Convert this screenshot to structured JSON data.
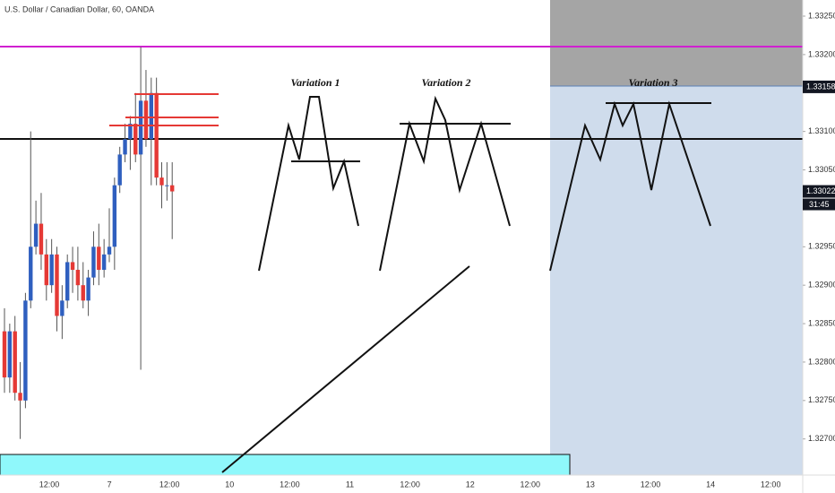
{
  "header": {
    "title": "U.S. Dollar / Canadian Dollar, 60, OANDA"
  },
  "chart_data": {
    "type": "candlestick",
    "up_color": "#2f5fbf",
    "down_color": "#e53935",
    "open": [
      1.3284,
      1.3278,
      1.3284,
      1.3276,
      1.3275,
      1.3288,
      1.3295,
      1.3298,
      1.3294,
      1.329,
      1.3294,
      1.3286,
      1.3288,
      1.3293,
      1.3292,
      1.329,
      1.3288,
      1.3291,
      1.3295,
      1.3292,
      1.3294,
      1.3295,
      1.3303,
      1.3307,
      1.3309,
      1.3311,
      1.3307,
      1.3314,
      1.3309,
      1.3315,
      1.3304,
      1.3303,
      1.3303
    ],
    "high": [
      1.3287,
      1.3285,
      1.3286,
      1.328,
      1.3289,
      1.331,
      1.3301,
      1.3302,
      1.3296,
      1.3296,
      1.3295,
      1.329,
      1.3294,
      1.3295,
      1.3295,
      1.3293,
      1.3292,
      1.3297,
      1.3298,
      1.3296,
      1.33,
      1.3304,
      1.3308,
      1.3311,
      1.3312,
      1.3315,
      1.3321,
      1.3318,
      1.3317,
      1.3317,
      1.3306,
      1.3306,
      1.3306
    ],
    "low": [
      1.3276,
      1.3276,
      1.3275,
      1.327,
      1.3274,
      1.3287,
      1.3294,
      1.3292,
      1.3288,
      1.3289,
      1.3284,
      1.3283,
      1.3287,
      1.3289,
      1.3288,
      1.3287,
      1.3286,
      1.329,
      1.329,
      1.3291,
      1.3293,
      1.3292,
      1.3302,
      1.3306,
      1.3305,
      1.3306,
      1.3279,
      1.3308,
      1.3303,
      1.3303,
      1.33,
      1.3301,
      1.3296
    ],
    "close": [
      1.3278,
      1.3284,
      1.3276,
      1.3275,
      1.3288,
      1.3295,
      1.3298,
      1.3294,
      1.329,
      1.3294,
      1.3286,
      1.3288,
      1.3293,
      1.3292,
      1.329,
      1.3288,
      1.3291,
      1.3295,
      1.3292,
      1.3294,
      1.3295,
      1.3303,
      1.3307,
      1.3309,
      1.3311,
      1.3307,
      1.3314,
      1.3309,
      1.3315,
      1.3304,
      1.3303,
      1.3303,
      1.33022
    ],
    "ylim": [
      1.32653,
      1.33271
    ],
    "yticks": [
      {
        "value": 1.3325,
        "label": "1.33250"
      },
      {
        "value": 1.332,
        "label": "1.33200"
      },
      {
        "value": 1.331,
        "label": "1.33100"
      },
      {
        "value": 1.3305,
        "label": "1.33050"
      },
      {
        "value": 1.3295,
        "label": "1.32950"
      },
      {
        "value": 1.329,
        "label": "1.32900"
      },
      {
        "value": 1.3285,
        "label": "1.32850"
      },
      {
        "value": 1.328,
        "label": "1.32800"
      },
      {
        "value": 1.3275,
        "label": "1.32750"
      },
      {
        "value": 1.327,
        "label": "1.32700"
      }
    ],
    "xticks": [
      "12:00",
      "7",
      "12:00",
      "10",
      "12:00",
      "11",
      "12:00",
      "12",
      "12:00",
      "13",
      "12:00",
      "14",
      "12:00"
    ],
    "price_badges": [
      {
        "value": 1.33158,
        "label": "1.33158"
      },
      {
        "value": 1.33022,
        "label": "1.33022"
      }
    ],
    "countdown": "31:45",
    "annotations": [
      "Variation 1",
      "Variation 2",
      "Variation 3"
    ]
  }
}
